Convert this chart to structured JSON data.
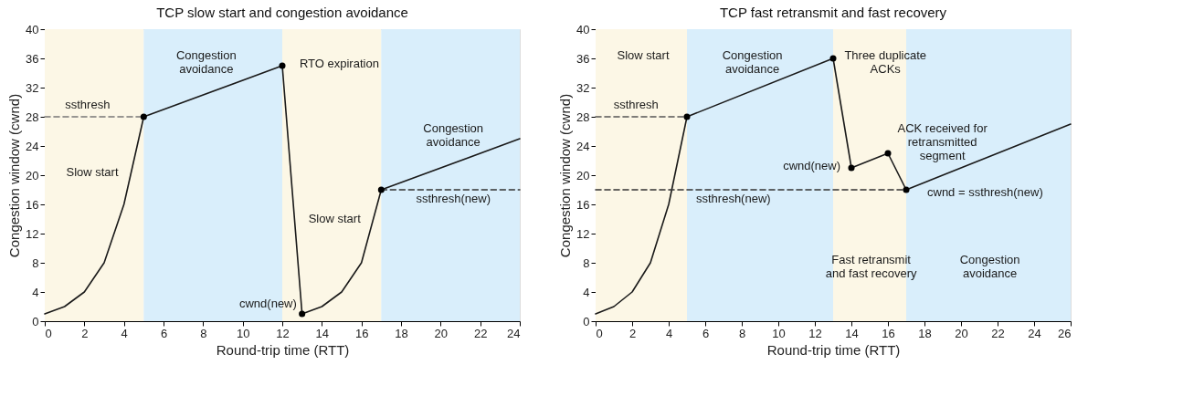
{
  "chart_data": [
    {
      "type": "line",
      "title": "TCP slow start and congestion avoidance",
      "xlabel": "Round-trip time (RTT)",
      "ylabel": "Congestion window (cwnd)",
      "xlim": [
        0,
        24
      ],
      "xticks": [
        0,
        2,
        4,
        6,
        8,
        10,
        12,
        14,
        16,
        18,
        20,
        22,
        24
      ],
      "ylim": [
        0,
        40
      ],
      "yticks": [
        0,
        4,
        8,
        12,
        16,
        20,
        24,
        28,
        32,
        36,
        40
      ],
      "grid": false,
      "bands": [
        {
          "axis": "x",
          "from": 0,
          "to": 5,
          "color": "#fcf7e6"
        },
        {
          "axis": "x",
          "from": 5,
          "to": 12,
          "color": "#d9eefb"
        },
        {
          "axis": "x",
          "from": 12,
          "to": 17,
          "color": "#fcf7e6"
        },
        {
          "axis": "x",
          "from": 17,
          "to": 24,
          "color": "#d9eefb"
        }
      ],
      "series": [
        {
          "type": "line",
          "color": "#1a1a1a",
          "line_style": "solid",
          "marker": "none",
          "x": [
            0,
            1,
            2,
            3,
            4,
            5,
            12,
            13,
            14,
            15,
            16,
            17,
            24
          ],
          "values": [
            1,
            2,
            4,
            8,
            16,
            28,
            35,
            1,
            2,
            4,
            8,
            18,
            25
          ]
        },
        {
          "type": "line",
          "color": "#777777",
          "line_style": "dashed",
          "marker": "none",
          "x": [
            0,
            5
          ],
          "values": [
            28,
            28
          ]
        },
        {
          "type": "line",
          "color": "#333333",
          "line_style": "dashed",
          "marker": "none",
          "x": [
            17,
            24
          ],
          "values": [
            18,
            18
          ]
        },
        {
          "type": "scatter",
          "color": "#000000",
          "marker": "circle",
          "x": [
            5,
            12,
            13,
            17
          ],
          "values": [
            28,
            35,
            1,
            18
          ]
        }
      ],
      "annotations": [
        "Congestion\navoidance",
        "RTO expiration",
        "ssthresh",
        "Slow start",
        "cwnd(new)",
        "Slow start",
        "Congestion\navoidance",
        "ssthresh(new)"
      ]
    },
    {
      "type": "line",
      "title": "TCP fast retransmit and fast recovery",
      "xlabel": "Round-trip time (RTT)",
      "ylabel": "Congestion window (cwnd)",
      "xlim": [
        0,
        26
      ],
      "xticks": [
        0,
        2,
        4,
        6,
        8,
        10,
        12,
        14,
        16,
        18,
        20,
        22,
        24,
        26
      ],
      "ylim": [
        0,
        40
      ],
      "yticks": [
        0,
        4,
        8,
        12,
        16,
        20,
        24,
        28,
        32,
        36,
        40
      ],
      "grid": false,
      "bands": [
        {
          "axis": "x",
          "from": 0,
          "to": 5,
          "color": "#fcf7e6"
        },
        {
          "axis": "x",
          "from": 5,
          "to": 13,
          "color": "#d9eefb"
        },
        {
          "axis": "x",
          "from": 13,
          "to": 17,
          "color": "#fcf7e6"
        },
        {
          "axis": "x",
          "from": 17,
          "to": 26,
          "color": "#d9eefb"
        }
      ],
      "series": [
        {
          "type": "line",
          "color": "#1a1a1a",
          "line_style": "solid",
          "marker": "none",
          "x": [
            0,
            1,
            2,
            3,
            4,
            5,
            13,
            14,
            16,
            17,
            26
          ],
          "values": [
            1,
            2,
            4,
            8,
            16,
            28,
            36,
            21,
            23,
            18,
            27
          ]
        },
        {
          "type": "line",
          "color": "#555555",
          "line_style": "dashed",
          "marker": "none",
          "x": [
            0,
            5
          ],
          "values": [
            28,
            28
          ]
        },
        {
          "type": "line",
          "color": "#333333",
          "line_style": "dashed",
          "marker": "none",
          "x": [
            0,
            17
          ],
          "values": [
            18,
            18
          ]
        },
        {
          "type": "scatter",
          "color": "#000000",
          "marker": "circle",
          "x": [
            5,
            13,
            14,
            16,
            17
          ],
          "values": [
            28,
            36,
            21,
            23,
            18
          ]
        }
      ],
      "annotations": [
        "Slow start",
        "Congestion\navoidance",
        "Three duplicate\nACKs",
        "ssthresh",
        "ACK received for\nretransmitted\nsegment",
        "cwnd(new)",
        "ssthresh(new)",
        "cwnd = ssthresh(new)",
        "Fast retransmit\nand fast recovery",
        "Congestion\navoidance"
      ]
    }
  ]
}
